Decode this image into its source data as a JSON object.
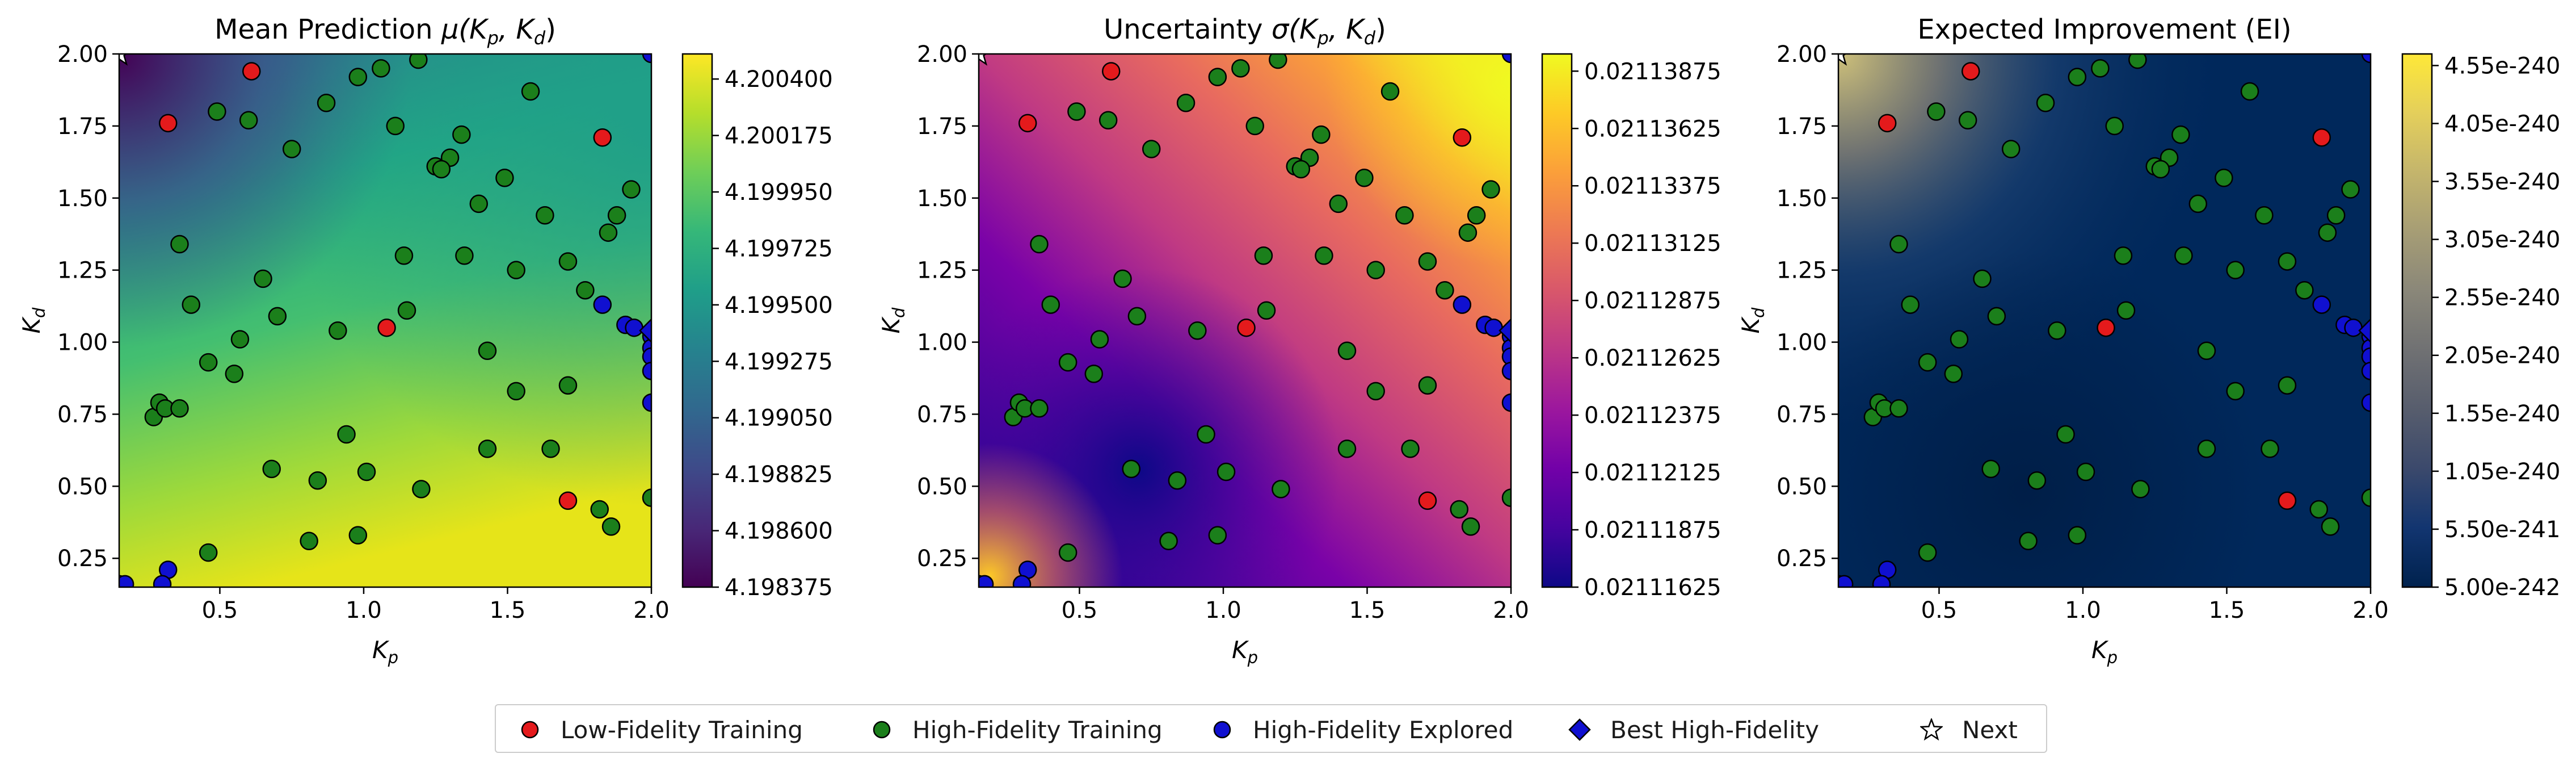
{
  "figure": {
    "panels": [
      {
        "title": "Mean Prediction μ(K_p, K_d)",
        "title_main": "Mean Prediction ",
        "title_math": "μ(K",
        "cmap": "viridis"
      },
      {
        "title": "Uncertainty σ(K_p, K_d)",
        "title_main": "Uncertainty ",
        "title_math": "σ(K",
        "cmap": "plasma"
      },
      {
        "title": "Expected Improvement (EI)",
        "title_main": "Expected Improvement (EI)",
        "title_math": "",
        "cmap": "cividis"
      }
    ],
    "legend": [
      {
        "label": "Low-Fidelity Training",
        "marker": "circle",
        "color": "#e41a1c"
      },
      {
        "label": "High-Fidelity Training",
        "marker": "circle",
        "color": "#1b7f1b"
      },
      {
        "label": "High-Fidelity Explored",
        "marker": "circle",
        "color": "#1010d0"
      },
      {
        "label": "Best High-Fidelity",
        "marker": "diamond",
        "color": "#1010d0"
      },
      {
        "label": "Next",
        "marker": "star",
        "color": "#ffffff"
      }
    ]
  },
  "chart_data": [
    {
      "type": "heatmap",
      "title": "Mean Prediction μ(K_p, K_d)",
      "xlabel": "K_p",
      "ylabel": "K_d",
      "xlim": [
        0.15,
        2.0
      ],
      "ylim": [
        0.15,
        2.0
      ],
      "xticks": [
        "0.5",
        "1.0",
        "1.5",
        "2.0"
      ],
      "yticks": [
        "0.25",
        "0.50",
        "0.75",
        "1.00",
        "1.25",
        "1.50",
        "1.75",
        "2.00"
      ],
      "colorbar_ticks": [
        "4.198375",
        "4.198600",
        "4.198825",
        "4.199050",
        "4.199275",
        "4.199500",
        "4.199725",
        "4.199950",
        "4.200175",
        "4.200400"
      ],
      "colorbar_range": [
        4.198375,
        4.2005
      ]
    },
    {
      "type": "heatmap",
      "title": "Uncertainty σ(K_p, K_d)",
      "xlabel": "K_p",
      "ylabel": "K_d",
      "xlim": [
        0.15,
        2.0
      ],
      "ylim": [
        0.15,
        2.0
      ],
      "xticks": [
        "0.5",
        "1.0",
        "1.5",
        "2.0"
      ],
      "yticks": [
        "0.25",
        "0.50",
        "0.75",
        "1.00",
        "1.25",
        "1.50",
        "1.75",
        "2.00"
      ],
      "colorbar_ticks": [
        "0.02111625",
        "0.02111875",
        "0.02112125",
        "0.02112375",
        "0.02112625",
        "0.02112875",
        "0.02113125",
        "0.02113375",
        "0.02113625",
        "0.02113875"
      ],
      "colorbar_range": [
        0.02111625,
        0.0211395
      ]
    },
    {
      "type": "heatmap",
      "title": "Expected Improvement (EI)",
      "xlabel": "K_p",
      "ylabel": "K_d",
      "xlim": [
        0.15,
        2.0
      ],
      "ylim": [
        0.15,
        2.0
      ],
      "xticks": [
        "0.5",
        "1.0",
        "1.5",
        "2.0"
      ],
      "yticks": [
        "0.25",
        "0.50",
        "0.75",
        "1.00",
        "1.25",
        "1.50",
        "1.75",
        "2.00"
      ],
      "colorbar_ticks": [
        "5.00e-242",
        "5.50e-241",
        "1.05e-240",
        "1.55e-240",
        "2.05e-240",
        "2.55e-240",
        "3.05e-240",
        "3.55e-240",
        "4.05e-240",
        "4.55e-240"
      ],
      "colorbar_range": [
        5e-242,
        4.65e-240
      ]
    }
  ],
  "points": {
    "low_fidelity": [
      [
        0.61,
        1.94
      ],
      [
        0.32,
        1.76
      ],
      [
        1.83,
        1.71
      ],
      [
        1.08,
        1.05
      ],
      [
        1.71,
        0.45
      ]
    ],
    "high_fidelity_training": [
      [
        0.98,
        1.92
      ],
      [
        1.06,
        1.95
      ],
      [
        1.19,
        1.98
      ],
      [
        0.49,
        1.8
      ],
      [
        0.6,
        1.77
      ],
      [
        0.87,
        1.83
      ],
      [
        1.11,
        1.75
      ],
      [
        1.34,
        1.72
      ],
      [
        0.75,
        1.67
      ],
      [
        1.3,
        1.64
      ],
      [
        1.25,
        1.61
      ],
      [
        1.27,
        1.6
      ],
      [
        1.49,
        1.57
      ],
      [
        1.58,
        1.87
      ],
      [
        1.4,
        1.48
      ],
      [
        1.63,
        1.44
      ],
      [
        1.88,
        1.44
      ],
      [
        1.93,
        1.53
      ],
      [
        1.85,
        1.38
      ],
      [
        0.36,
        1.34
      ],
      [
        1.14,
        1.3
      ],
      [
        1.35,
        1.3
      ],
      [
        0.65,
        1.22
      ],
      [
        1.71,
        1.28
      ],
      [
        1.53,
        1.25
      ],
      [
        0.4,
        1.13
      ],
      [
        0.7,
        1.09
      ],
      [
        1.15,
        1.11
      ],
      [
        1.77,
        1.18
      ],
      [
        0.91,
        1.04
      ],
      [
        0.57,
        1.01
      ],
      [
        0.46,
        0.93
      ],
      [
        1.43,
        0.97
      ],
      [
        0.55,
        0.89
      ],
      [
        1.53,
        0.83
      ],
      [
        1.71,
        0.85
      ],
      [
        0.27,
        0.74
      ],
      [
        0.29,
        0.79
      ],
      [
        0.31,
        0.77
      ],
      [
        0.36,
        0.77
      ],
      [
        0.94,
        0.68
      ],
      [
        1.43,
        0.63
      ],
      [
        1.65,
        0.63
      ],
      [
        0.68,
        0.56
      ],
      [
        0.84,
        0.52
      ],
      [
        1.01,
        0.55
      ],
      [
        1.2,
        0.49
      ],
      [
        0.81,
        0.31
      ],
      [
        0.98,
        0.33
      ],
      [
        0.46,
        0.27
      ],
      [
        1.82,
        0.42
      ],
      [
        1.86,
        0.36
      ],
      [
        2.0,
        0.46
      ]
    ],
    "high_fidelity_explored": [
      [
        1.83,
        1.13
      ],
      [
        1.91,
        1.06
      ],
      [
        1.94,
        1.05
      ],
      [
        2.0,
        1.02
      ],
      [
        2.0,
        0.98
      ],
      [
        2.0,
        0.95
      ],
      [
        2.0,
        0.9
      ],
      [
        2.0,
        0.79
      ],
      [
        0.32,
        0.21
      ],
      [
        0.3,
        0.16
      ],
      [
        0.15,
        0.16
      ],
      [
        0.17,
        0.16
      ],
      [
        2.0,
        2.0
      ]
    ],
    "best_high_fidelity": [
      [
        2.0,
        1.04
      ]
    ],
    "next": [
      [
        0.15,
        2.0
      ]
    ]
  }
}
